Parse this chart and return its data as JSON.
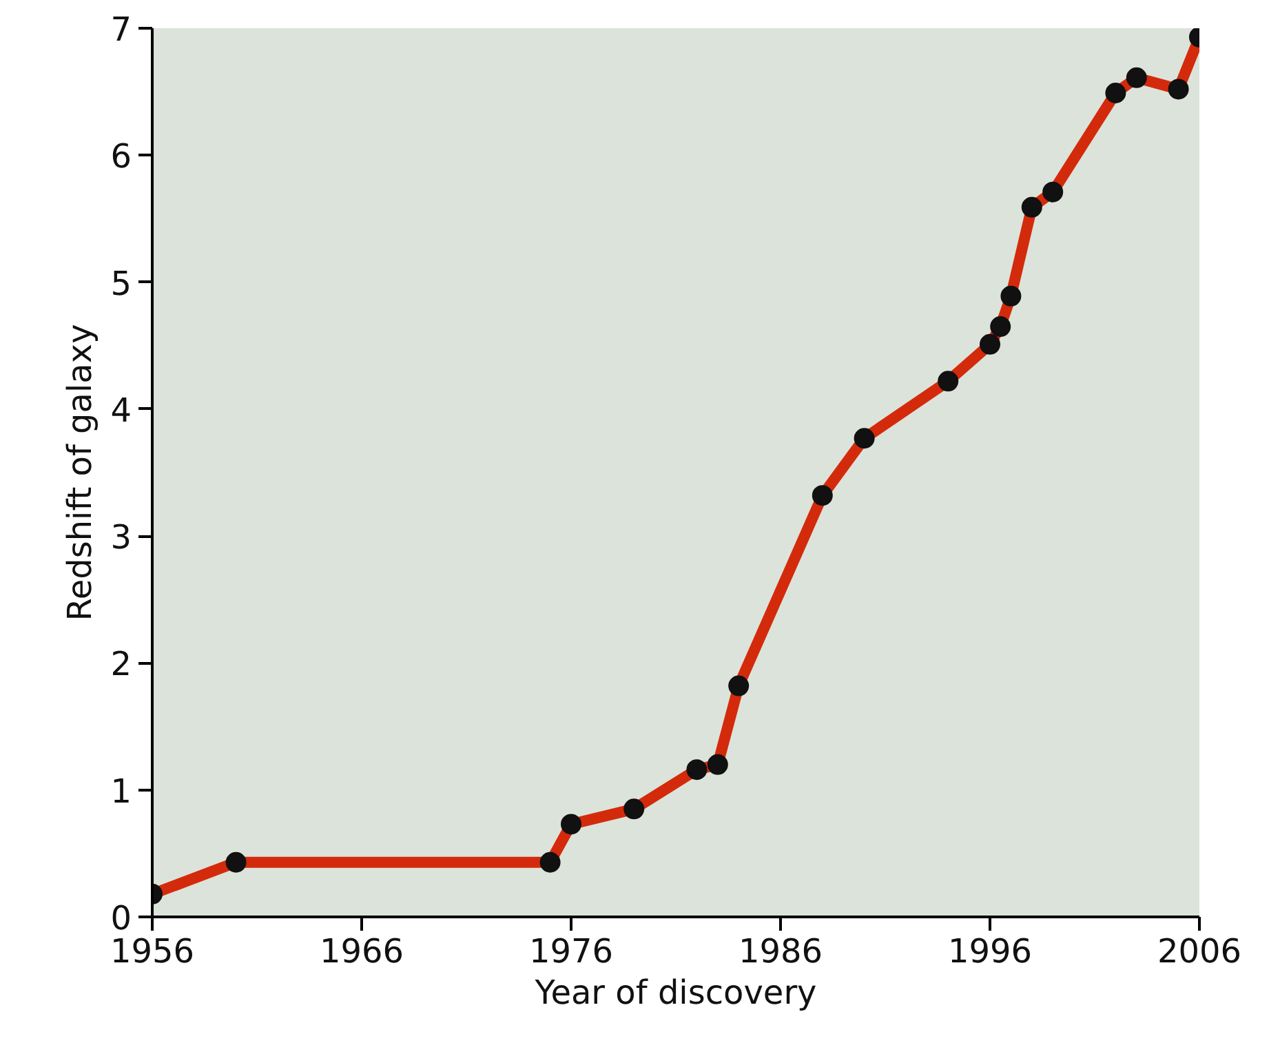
{
  "chart_data": {
    "type": "line",
    "xlabel": "Year of discovery",
    "ylabel": "Redshift of galaxy",
    "x": [
      1956,
      1960,
      1975,
      1976,
      1979,
      1982,
      1983,
      1984,
      1988,
      1990,
      1994,
      1996,
      1996.5,
      1997,
      1998,
      1999,
      2002,
      2003,
      2005,
      2006
    ],
    "series": [
      {
        "color": "#d42a0c",
        "values": [
          0.18,
          0.43,
          0.43,
          0.73,
          0.85,
          1.16,
          1.2,
          1.82,
          3.32,
          3.77,
          4.22,
          4.51,
          4.65,
          4.89,
          5.59,
          5.71,
          6.49,
          6.61,
          6.52,
          6.93
        ]
      }
    ],
    "xlim": [
      1956,
      2006
    ],
    "xticks": [
      1956,
      1966,
      1976,
      1986,
      1996,
      2006
    ],
    "ylim": [
      0,
      7
    ],
    "yticks": [
      0,
      1,
      2,
      3,
      4,
      5,
      6,
      7
    ],
    "grid": false,
    "marker": "circle",
    "line_style": "solid"
  }
}
